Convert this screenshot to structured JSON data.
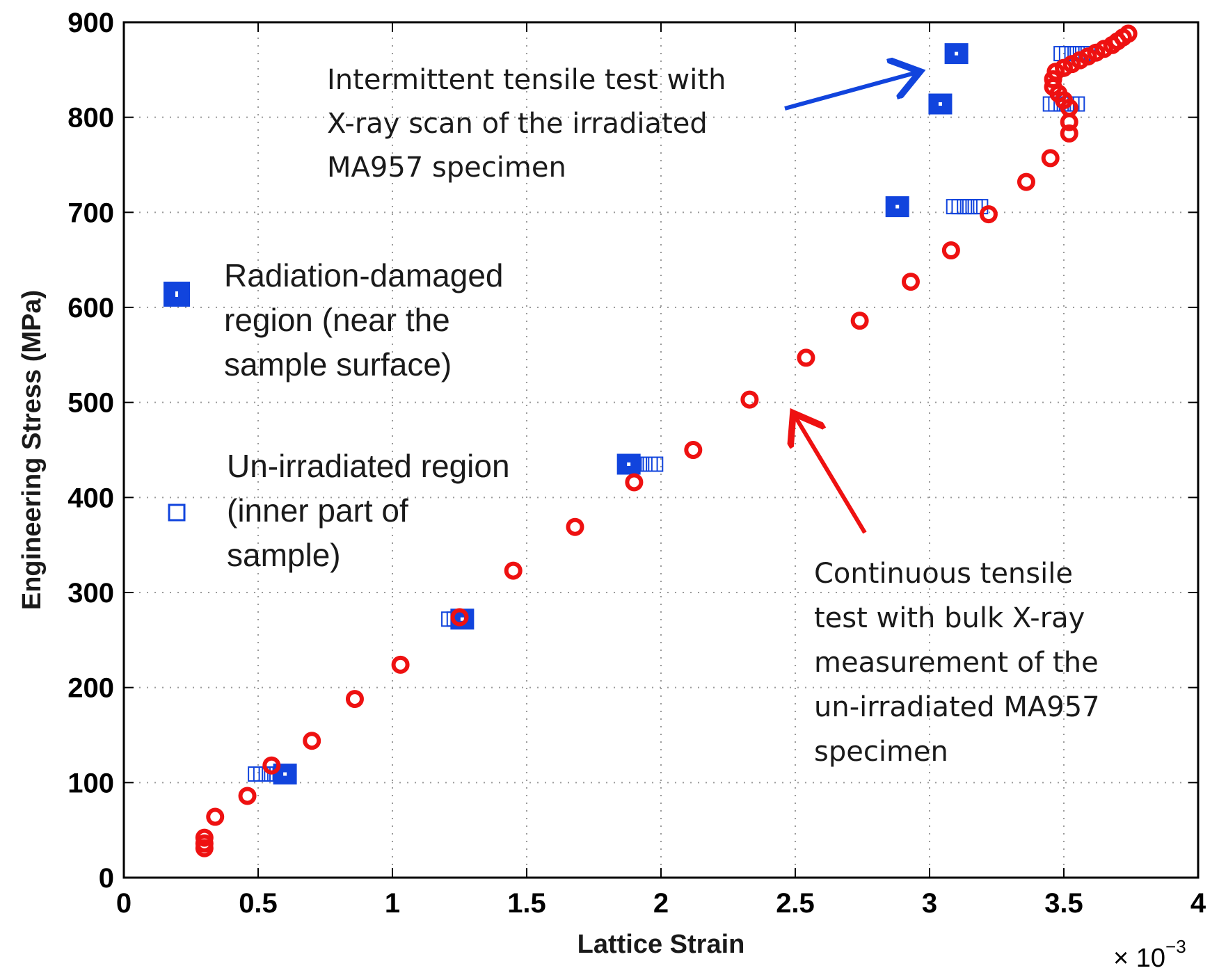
{
  "chart_data": {
    "type": "scatter",
    "title": "",
    "xlabel": "Lattice Strain",
    "ylabel": "Engineering Stress (MPa)",
    "x_multiplier": "× 10",
    "x_multiplier_exponent": "−3",
    "xlim": [
      0,
      4
    ],
    "ylim": [
      0,
      900
    ],
    "x_ticks": [
      "0",
      "0.5",
      "1",
      "1.5",
      "2",
      "2.5",
      "3",
      "3.5",
      "4"
    ],
    "x_tick_values": [
      0,
      0.5,
      1,
      1.5,
      2,
      2.5,
      3,
      3.5,
      4
    ],
    "y_ticks": [
      "0",
      "100",
      "200",
      "300",
      "400",
      "500",
      "600",
      "700",
      "800",
      "900"
    ],
    "y_tick_values": [
      0,
      100,
      200,
      300,
      400,
      500,
      600,
      700,
      800,
      900
    ],
    "grid": true,
    "colors": {
      "continuous": "#ee1111",
      "intermittent": "#1144dd",
      "axis": "#000000",
      "grid": "#9a9a9a"
    },
    "series": [
      {
        "name": "Radiation-damaged region (near the sample surface)",
        "marker": "filled-square",
        "points": [
          [
            0.6,
            109
          ],
          [
            1.26,
            272
          ],
          [
            1.88,
            435
          ],
          [
            2.88,
            706
          ],
          [
            3.04,
            814
          ],
          [
            3.1,
            867
          ]
        ]
      },
      {
        "name": "Un-irradiated region (inner part of sample)",
        "marker": "open-square",
        "points": [
          [
            0.49,
            109
          ],
          [
            0.51,
            109
          ],
          [
            0.53,
            109
          ],
          [
            0.55,
            109
          ],
          [
            0.57,
            109
          ],
          [
            1.21,
            272
          ],
          [
            1.23,
            272
          ],
          [
            1.25,
            272
          ],
          [
            1.27,
            272
          ],
          [
            1.88,
            435
          ],
          [
            1.9,
            435
          ],
          [
            1.92,
            435
          ],
          [
            1.94,
            435
          ],
          [
            1.96,
            435
          ],
          [
            1.98,
            435
          ],
          [
            3.09,
            706
          ],
          [
            3.11,
            706
          ],
          [
            3.13,
            706
          ],
          [
            3.15,
            706
          ],
          [
            3.17,
            706
          ],
          [
            3.19,
            706
          ],
          [
            3.45,
            814
          ],
          [
            3.47,
            814
          ],
          [
            3.49,
            814
          ],
          [
            3.51,
            814
          ],
          [
            3.53,
            814
          ],
          [
            3.55,
            814
          ],
          [
            3.49,
            867
          ],
          [
            3.51,
            867
          ],
          [
            3.53,
            867
          ],
          [
            3.55,
            867
          ],
          [
            3.57,
            867
          ],
          [
            3.59,
            867
          ]
        ]
      },
      {
        "name": "Continuous tensile test (bulk X-ray)",
        "marker": "open-circle",
        "points": [
          [
            0.3,
            31
          ],
          [
            0.3,
            36
          ],
          [
            0.3,
            42
          ],
          [
            0.34,
            64
          ],
          [
            0.46,
            86
          ],
          [
            0.55,
            118
          ],
          [
            0.7,
            144
          ],
          [
            0.86,
            188
          ],
          [
            1.03,
            224
          ],
          [
            1.25,
            274
          ],
          [
            1.45,
            323
          ],
          [
            1.68,
            369
          ],
          [
            1.9,
            416
          ],
          [
            2.12,
            450
          ],
          [
            2.33,
            503
          ],
          [
            2.54,
            547
          ],
          [
            2.74,
            586
          ],
          [
            2.93,
            627
          ],
          [
            3.08,
            660
          ],
          [
            3.22,
            698
          ],
          [
            3.36,
            732
          ],
          [
            3.45,
            757
          ],
          [
            3.52,
            783
          ],
          [
            3.52,
            795
          ],
          [
            3.52,
            810
          ],
          [
            3.5,
            818
          ],
          [
            3.48,
            825
          ],
          [
            3.46,
            832
          ],
          [
            3.46,
            840
          ],
          [
            3.47,
            848
          ],
          [
            3.5,
            852
          ],
          [
            3.53,
            856
          ],
          [
            3.56,
            860
          ],
          [
            3.59,
            864
          ],
          [
            3.62,
            868
          ],
          [
            3.65,
            872
          ],
          [
            3.68,
            876
          ],
          [
            3.7,
            880
          ],
          [
            3.72,
            884
          ],
          [
            3.74,
            888
          ]
        ]
      }
    ],
    "legend": [
      {
        "marker": "filled-square",
        "lines": [
          "Radiation-damaged",
          "region (near the",
          "sample surface)"
        ]
      },
      {
        "marker": "open-square",
        "lines": [
          "Un-irradiated region",
          "(inner part of",
          "sample)"
        ]
      }
    ],
    "annotations": [
      {
        "id": "intermittent",
        "lines": [
          "Intermittent tensile test with",
          "X-ray scan of the irradiated",
          "MA957 specimen"
        ],
        "arrow_to": [
          2.95,
          847
        ],
        "arrow_color": "#1144dd"
      },
      {
        "id": "continuous",
        "lines": [
          "Continuous tensile",
          "test with bulk X-ray",
          "measurement of the",
          "un-irradiated MA957",
          "specimen"
        ],
        "arrow_to": [
          2.5,
          485
        ],
        "arrow_color": "#ee1111"
      }
    ]
  }
}
